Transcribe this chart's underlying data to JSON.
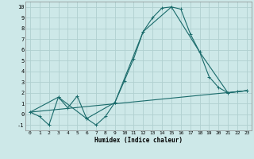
{
  "xlabel": "Humidex (Indice chaleur)",
  "xlim": [
    -0.5,
    23.5
  ],
  "ylim": [
    -1.5,
    10.5
  ],
  "xticks": [
    0,
    1,
    2,
    3,
    4,
    5,
    6,
    7,
    8,
    9,
    10,
    11,
    12,
    13,
    14,
    15,
    16,
    17,
    18,
    19,
    20,
    21,
    22,
    23
  ],
  "yticks": [
    -1,
    0,
    1,
    2,
    3,
    4,
    5,
    6,
    7,
    8,
    9,
    10
  ],
  "background_color": "#cde8e8",
  "grid_color": "#b0d0d0",
  "line_color": "#1a6b6b",
  "line1_x": [
    0,
    1,
    2,
    3,
    4,
    5,
    6,
    7,
    8,
    9,
    10,
    11,
    12,
    13,
    14,
    15,
    16,
    17,
    18,
    19,
    20,
    21,
    22,
    23
  ],
  "line1_y": [
    0.2,
    -0.2,
    -1.0,
    1.6,
    0.6,
    1.7,
    -0.4,
    -1.0,
    -0.2,
    1.1,
    3.1,
    5.2,
    7.7,
    9.0,
    9.9,
    10.0,
    9.8,
    7.5,
    5.8,
    3.5,
    2.5,
    2.0,
    2.1,
    2.2
  ],
  "line2_x": [
    0,
    3,
    6,
    9,
    12,
    15,
    18,
    21,
    23
  ],
  "line2_y": [
    0.2,
    1.6,
    -0.4,
    1.1,
    7.7,
    10.0,
    5.8,
    2.0,
    2.2
  ],
  "line3_x": [
    0,
    23
  ],
  "line3_y": [
    0.2,
    2.2
  ]
}
